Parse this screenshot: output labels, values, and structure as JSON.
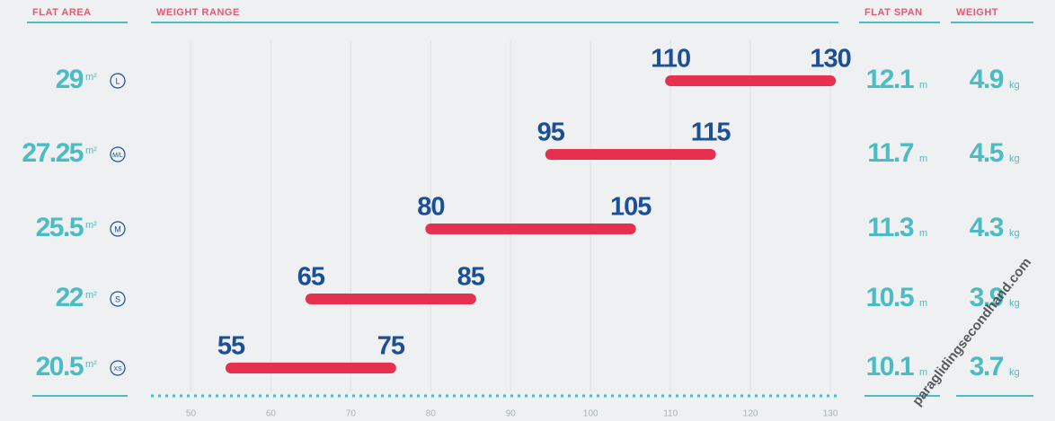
{
  "chart_data": {
    "type": "range",
    "columns": [
      "FLAT AREA",
      "WEIGHT RANGE",
      "FLAT SPAN",
      "WEIGHT"
    ],
    "categories": [
      "L",
      "M/L",
      "M",
      "S",
      "XS"
    ],
    "flat_area": [
      29,
      27.25,
      25.5,
      22,
      20.5
    ],
    "area_unit": "m²",
    "low": [
      110,
      95,
      80,
      65,
      55
    ],
    "high": [
      130,
      115,
      105,
      85,
      75
    ],
    "color": "#e5304f",
    "flat_span": [
      12.1,
      11.7,
      11.3,
      10.5,
      10.1
    ],
    "span_unit": "m",
    "weight": [
      4.9,
      4.5,
      4.3,
      3.9,
      3.7
    ],
    "weight_unit": "kg",
    "xlim": [
      45,
      131
    ],
    "xticks": [
      50,
      60,
      70,
      80,
      90,
      100,
      110,
      120,
      130
    ],
    "grid": true,
    "watermark": "paraglidingsecondhand.com"
  }
}
